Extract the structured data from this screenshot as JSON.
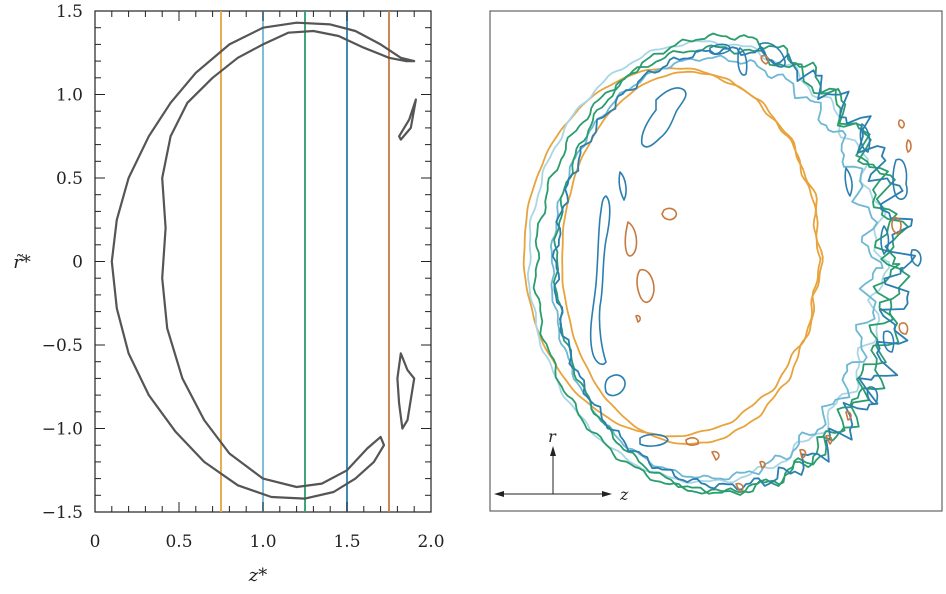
{
  "chart_data": [
    {
      "type": "line",
      "title": "",
      "xlabel": "z*",
      "ylabel": "r̃*",
      "xlim": [
        0,
        2.0
      ],
      "ylim": [
        -1.5,
        1.5
      ],
      "xticks": [
        "0",
        "0.5",
        "1.0",
        "1.5",
        "2.0"
      ],
      "yticks": [
        "1.5",
        "1.0",
        "0.5",
        "0",
        "−0.5",
        "−1.0",
        "−1.5"
      ],
      "grid": false,
      "legend": "none",
      "vertical_lines": [
        {
          "x": 0.75,
          "color": "#e8a33c"
        },
        {
          "x": 1.0,
          "color": "#6fb8d4"
        },
        {
          "x": 1.25,
          "color": "#2a9d6e"
        },
        {
          "x": 1.5,
          "color": "#2b7fb0"
        },
        {
          "x": 1.75,
          "color": "#c8793f"
        }
      ],
      "series": [
        {
          "color": "#555555",
          "x": [
            1.9,
            1.82,
            1.7,
            1.55,
            1.4,
            1.2,
            1.0,
            0.8,
            0.6,
            0.45,
            0.32,
            0.2,
            0.13,
            0.1,
            0.13,
            0.2,
            0.32,
            0.48,
            0.65,
            0.85,
            1.05,
            1.25,
            1.42,
            1.55,
            1.66,
            1.72,
            1.7,
            1.62,
            1.5,
            1.35,
            1.2,
            1.0,
            0.8,
            0.65,
            0.52,
            0.43,
            0.4,
            0.42,
            0.4,
            0.45,
            0.55,
            0.7,
            0.85,
            1.0,
            1.15,
            1.3,
            1.45,
            1.6,
            1.75,
            1.85,
            1.9
          ],
          "y": [
            1.2,
            1.22,
            1.3,
            1.38,
            1.42,
            1.43,
            1.4,
            1.3,
            1.13,
            0.95,
            0.75,
            0.5,
            0.25,
            0.0,
            -0.28,
            -0.55,
            -0.8,
            -1.02,
            -1.2,
            -1.34,
            -1.41,
            -1.42,
            -1.38,
            -1.3,
            -1.2,
            -1.1,
            -1.05,
            -1.12,
            -1.25,
            -1.33,
            -1.35,
            -1.3,
            -1.15,
            -0.95,
            -0.7,
            -0.4,
            -0.1,
            0.2,
            0.5,
            0.75,
            0.95,
            1.1,
            1.22,
            1.3,
            1.37,
            1.38,
            1.35,
            1.28,
            1.22,
            1.2,
            1.2
          ]
        },
        {
          "color": "#555555",
          "x": [
            1.81,
            1.87,
            1.91,
            1.88,
            1.82,
            1.81
          ],
          "y": [
            0.75,
            0.85,
            0.97,
            0.8,
            0.73,
            0.75
          ]
        },
        {
          "color": "#555555",
          "x": [
            1.82,
            1.86,
            1.9,
            1.86,
            1.83,
            1.81,
            1.8,
            1.82
          ],
          "y": [
            -0.55,
            -0.65,
            -0.7,
            -0.95,
            -1.0,
            -0.85,
            -0.7,
            -0.55
          ]
        }
      ]
    },
    {
      "type": "line",
      "title": "",
      "xlabel": "z",
      "ylabel": "r",
      "legend": "none",
      "grid": false,
      "series": [
        {
          "color": "#e8a33c",
          "values": []
        },
        {
          "color": "#a9d6e5",
          "values": []
        },
        {
          "color": "#6fb8d4",
          "values": []
        },
        {
          "color": "#2a9d6e",
          "values": []
        },
        {
          "color": "#2b7fb0",
          "values": []
        },
        {
          "color": "#c8793f",
          "values": []
        }
      ]
    }
  ],
  "colors": {
    "orange": "#e8a33c",
    "light_blue": "#a9d6e5",
    "sky_blue": "#6fb8d4",
    "green": "#2a9d6e",
    "blue": "#2b7fb0",
    "brown": "#c8793f",
    "contour": "#555555"
  }
}
